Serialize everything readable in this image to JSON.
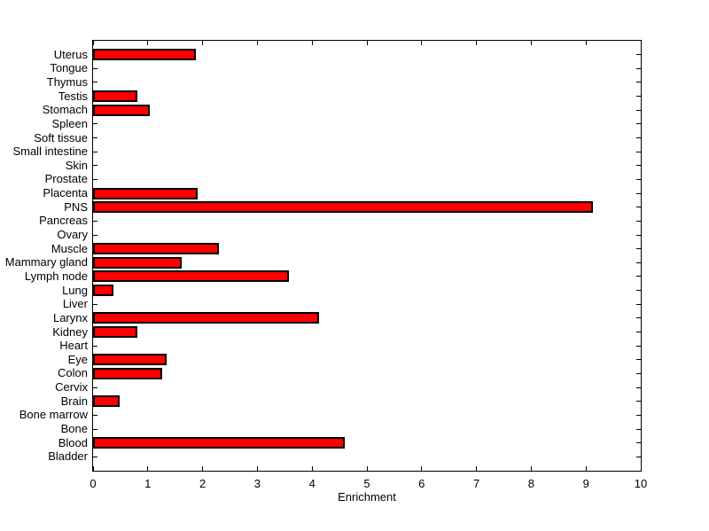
{
  "chart_data": {
    "type": "bar",
    "orientation": "horizontal",
    "title": "",
    "xlabel": "Enrichment",
    "ylabel": "",
    "xlim": [
      0,
      10
    ],
    "xticks": [
      0,
      1,
      2,
      3,
      4,
      5,
      6,
      7,
      8,
      9,
      10
    ],
    "grid": false,
    "legend": null,
    "bar_color": "#FF0000",
    "bar_edge_color": "#000000",
    "axis_color": "#000000",
    "background_color": "#FFFFFF",
    "categories": [
      "Uterus",
      "Tongue",
      "Thymus",
      "Testis",
      "Stomach",
      "Spleen",
      "Soft tissue",
      "Small intestine",
      "Skin",
      "Prostate",
      "Placenta",
      "PNS",
      "Pancreas",
      "Ovary",
      "Muscle",
      "Mammary gland",
      "Lymph node",
      "Lung",
      "Liver",
      "Larynx",
      "Kidney",
      "Heart",
      "Eye",
      "Colon",
      "Cervix",
      "Brain",
      "Bone marrow",
      "Bone",
      "Blood",
      "Bladder"
    ],
    "values": [
      1.88,
      0,
      0,
      0.81,
      1.04,
      0,
      0,
      0,
      0,
      0,
      1.91,
      9.13,
      0,
      0,
      2.29,
      1.62,
      3.57,
      0.38,
      0,
      4.13,
      0.81,
      0,
      1.35,
      1.26,
      0,
      0.48,
      0,
      0,
      4.59,
      0
    ]
  }
}
